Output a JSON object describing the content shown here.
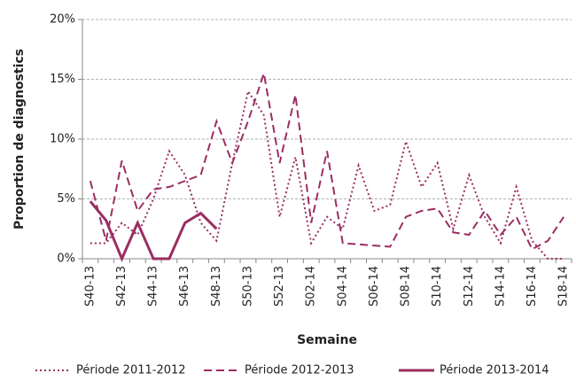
{
  "chart_data": {
    "type": "line",
    "x_label": "Semaine",
    "y_label": "Proportion de diagnostics",
    "categories": [
      "S40-13",
      null,
      "S42-13",
      null,
      "S44-13",
      null,
      "S46-13",
      null,
      "S48-13",
      null,
      "S50-13",
      null,
      "S52-13",
      null,
      "S02-14",
      null,
      "S04-14",
      null,
      "S06-14",
      null,
      "S08-14",
      null,
      "S10-14",
      null,
      "S12-14",
      null,
      "S14-14",
      null,
      "S16-14",
      null,
      "S18-14"
    ],
    "ylim": [
      0,
      20
    ],
    "yticks": [
      {
        "value": 0,
        "label": "0%"
      },
      {
        "value": 5,
        "label": "5%"
      },
      {
        "value": 10,
        "label": "10%"
      },
      {
        "value": 15,
        "label": "15%"
      },
      {
        "value": 20,
        "label": "20%"
      }
    ],
    "grid": true,
    "legend": "bottom",
    "series": [
      {
        "name": "Période 2011-2012",
        "color": "#9b2d62",
        "dash": "dotted",
        "values": [
          1.3,
          1.3,
          3,
          2,
          5,
          9,
          7,
          3,
          1.5,
          8,
          14,
          12,
          3.5,
          8.5,
          1.3,
          3.5,
          2.5,
          7.8,
          4,
          4.5,
          9.8,
          6,
          8,
          2.5,
          7,
          3.5,
          1.3,
          6,
          1.5,
          0,
          0
        ]
      },
      {
        "name": "Période 2012-2013",
        "color": "#9b2d62",
        "dash": "dashed",
        "values": [
          6.5,
          1.5,
          8.2,
          4,
          5.8,
          6,
          6.5,
          7,
          11.5,
          8,
          11.5,
          15.5,
          8,
          13.7,
          3,
          9,
          1.3,
          1.2,
          1.1,
          1,
          3.5,
          4,
          4.2,
          2.2,
          2,
          4,
          2,
          3.5,
          0.8,
          1.5,
          3.5
        ]
      },
      {
        "name": "Période 2013-2014",
        "color": "#9b2d62",
        "dash": "solid",
        "values": [
          4.8,
          3.2,
          0,
          3,
          0,
          0,
          3,
          3.8,
          2.5,
          null,
          null,
          null,
          null,
          null,
          null,
          null,
          null,
          null,
          null,
          null,
          null,
          null,
          null,
          null,
          null,
          null,
          null,
          null,
          null,
          null,
          null
        ]
      }
    ]
  }
}
